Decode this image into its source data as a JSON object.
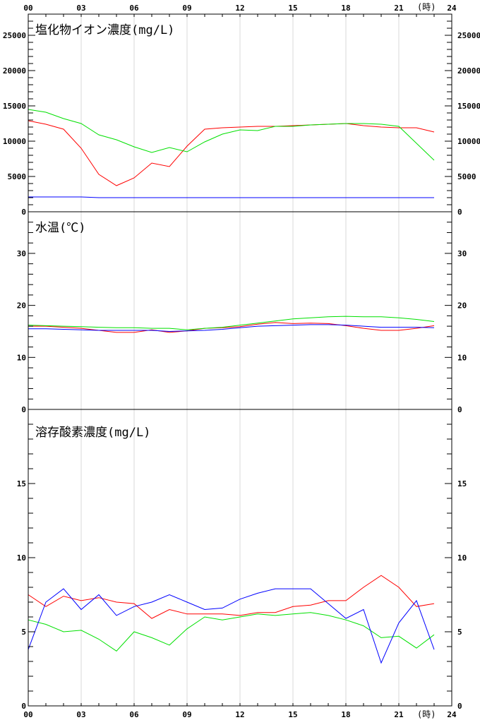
{
  "time_unit_label": "(時)",
  "x_ticks": [
    "00",
    "03",
    "06",
    "09",
    "12",
    "15",
    "18",
    "21",
    "24"
  ],
  "chart_data": [
    {
      "type": "line",
      "title": "塩化物イオン濃度(mg/L)",
      "x": [
        0,
        1,
        2,
        3,
        4,
        5,
        6,
        7,
        8,
        9,
        10,
        11,
        12,
        13,
        14,
        15,
        16,
        17,
        18,
        19,
        20,
        21,
        22,
        23
      ],
      "xlim": [
        0,
        24
      ],
      "ylim": [
        0,
        28000
      ],
      "y_ticks": [
        "0",
        "5000",
        "10000",
        "15000",
        "20000",
        "25000"
      ],
      "y_tick_values": [
        0,
        5000,
        10000,
        15000,
        20000,
        25000
      ],
      "minor_step": 1000,
      "grid": true,
      "series": [
        {
          "color": "#ff0000",
          "values": [
            12900,
            12400,
            11700,
            9000,
            5300,
            3700,
            4800,
            6900,
            6400,
            9300,
            11700,
            11900,
            12000,
            12100,
            12100,
            12200,
            12300,
            12400,
            12500,
            12200,
            12000,
            11900,
            11900,
            11300
          ]
        },
        {
          "color": "#00e000",
          "values": [
            14500,
            14100,
            13200,
            12500,
            10900,
            10200,
            9200,
            8400,
            9100,
            8500,
            9900,
            11000,
            11600,
            11500,
            12100,
            12100,
            12300,
            12400,
            12500,
            12500,
            12400,
            12100,
            9700,
            7300
          ]
        },
        {
          "color": "#0000ff",
          "values": [
            2100,
            2100,
            2100,
            2100,
            2000,
            2000,
            2000,
            2000,
            2000,
            2000,
            2000,
            2000,
            2000,
            2000,
            2000,
            2000,
            2000,
            2000,
            2000,
            2000,
            2000,
            2000,
            2000,
            2000
          ]
        }
      ]
    },
    {
      "type": "line",
      "title": "水温(℃)",
      "x": [
        0,
        1,
        2,
        3,
        4,
        5,
        6,
        7,
        8,
        9,
        10,
        11,
        12,
        13,
        14,
        15,
        16,
        17,
        18,
        19,
        20,
        21,
        22,
        23
      ],
      "xlim": [
        0,
        24
      ],
      "ylim": [
        0,
        38
      ],
      "y_ticks": [
        "0",
        "10",
        "20",
        "30"
      ],
      "y_tick_values": [
        0,
        10,
        20,
        30
      ],
      "minor_step": 2,
      "grid": true,
      "series": [
        {
          "color": "#ff0000",
          "values": [
            16.0,
            16.0,
            15.8,
            15.6,
            15.2,
            14.8,
            14.8,
            15.3,
            14.8,
            15.1,
            15.6,
            15.7,
            15.9,
            16.4,
            16.7,
            16.5,
            16.6,
            16.5,
            16.1,
            15.6,
            15.2,
            15.2,
            15.6,
            16.1
          ]
        },
        {
          "color": "#00e000",
          "values": [
            16.2,
            16.1,
            16.0,
            15.9,
            15.8,
            15.7,
            15.7,
            15.6,
            15.6,
            15.3,
            15.6,
            15.8,
            16.2,
            16.6,
            17.0,
            17.4,
            17.6,
            17.8,
            17.9,
            17.8,
            17.8,
            17.6,
            17.3,
            16.9
          ]
        },
        {
          "color": "#0000ff",
          "values": [
            15.5,
            15.5,
            15.4,
            15.3,
            15.2,
            15.2,
            15.2,
            15.2,
            15.0,
            15.1,
            15.2,
            15.4,
            15.7,
            16.0,
            16.1,
            16.2,
            16.3,
            16.3,
            16.2,
            16.0,
            15.8,
            15.8,
            15.8,
            15.7
          ]
        }
      ]
    },
    {
      "type": "line",
      "title": "溶存酸素濃度(mg/L)",
      "x": [
        0,
        1,
        2,
        3,
        4,
        5,
        6,
        7,
        8,
        9,
        10,
        11,
        12,
        13,
        14,
        15,
        16,
        17,
        18,
        19,
        20,
        21,
        22,
        23
      ],
      "xlim": [
        0,
        24
      ],
      "ylim": [
        0,
        20
      ],
      "y_ticks": [
        "0",
        "5",
        "10",
        "15"
      ],
      "y_tick_values": [
        0,
        5,
        10,
        15
      ],
      "minor_step": 1,
      "grid": true,
      "series": [
        {
          "color": "#ff0000",
          "values": [
            7.5,
            6.7,
            7.4,
            7.1,
            7.3,
            7.0,
            6.9,
            5.9,
            6.5,
            6.2,
            6.2,
            6.2,
            6.1,
            6.3,
            6.3,
            6.7,
            6.8,
            7.1,
            7.1,
            8.0,
            8.8,
            8.0,
            6.7,
            6.9
          ]
        },
        {
          "color": "#00e000",
          "values": [
            5.8,
            5.5,
            5.0,
            5.1,
            4.5,
            3.7,
            5.0,
            4.6,
            4.1,
            5.2,
            6.0,
            5.8,
            6.0,
            6.2,
            6.1,
            6.2,
            6.3,
            6.1,
            5.8,
            5.4,
            4.6,
            4.7,
            3.9,
            4.8
          ]
        },
        {
          "color": "#0000ff",
          "values": [
            3.8,
            7.0,
            7.9,
            6.5,
            7.5,
            6.1,
            6.7,
            7.0,
            7.5,
            7.0,
            6.5,
            6.6,
            7.2,
            7.6,
            7.9,
            7.9,
            7.9,
            6.9,
            5.9,
            6.5,
            2.9,
            5.6,
            7.1,
            3.8
          ]
        }
      ]
    }
  ]
}
